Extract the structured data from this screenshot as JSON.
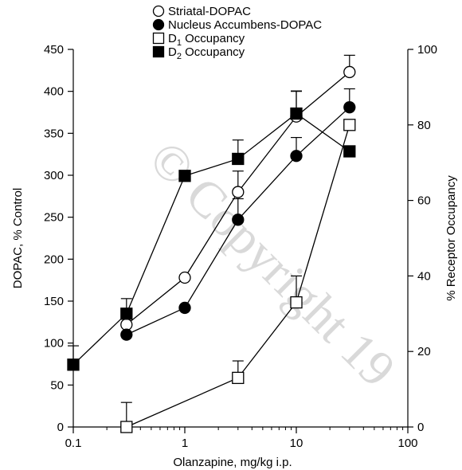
{
  "watermark": "© Copyright 19",
  "chart_data": {
    "type": "line",
    "xlabel": "Olanzapine, mg/kg i.p.",
    "ylabel_left": "DOPAC, % Control",
    "ylabel_right": "% Receptor Occupancy",
    "x_scale": "log",
    "xlim": [
      0.1,
      100
    ],
    "ylim_left": [
      0,
      450
    ],
    "ylim_right": [
      0,
      100
    ],
    "x_ticks": [
      0.1,
      1,
      10,
      100
    ],
    "x_tick_labels": [
      "0.1",
      "1",
      "10",
      "100"
    ],
    "y_left_ticks": [
      0,
      50,
      100,
      150,
      200,
      250,
      300,
      350,
      400,
      450
    ],
    "y_left_tick_labels": [
      "0",
      "50",
      "100",
      "150",
      "200",
      "250",
      "300",
      "350",
      "400",
      "450"
    ],
    "y_right_ticks": [
      0,
      20,
      40,
      60,
      80,
      100
    ],
    "y_right_tick_labels": [
      "0",
      "20",
      "40",
      "60",
      "80",
      "100"
    ],
    "grid": false,
    "legend_position": "top-center",
    "series": [
      {
        "id": "striatal",
        "name": "Striatal-DOPAC",
        "axis": "left",
        "marker": "circle",
        "fill": "#ffffff",
        "x": [
          0.3,
          1,
          3,
          10,
          30
        ],
        "y": [
          122,
          178,
          280,
          370,
          423
        ],
        "err": [
          null,
          null,
          25,
          30,
          20
        ]
      },
      {
        "id": "accumbens",
        "name": "Nucleus Accumbens-DOPAC",
        "axis": "left",
        "marker": "circle",
        "fill": "#000000",
        "x": [
          0.3,
          1,
          3,
          10,
          30
        ],
        "y": [
          110,
          142,
          247,
          323,
          381
        ],
        "err": [
          null,
          null,
          25,
          22,
          22
        ]
      },
      {
        "id": "d1",
        "name_main": "D",
        "name_sub": "1",
        "name_suffix": " Occupancy",
        "axis": "right",
        "marker": "square",
        "fill": "#ffffff",
        "x": [
          0.3,
          3,
          10,
          30
        ],
        "y": [
          0,
          13,
          33,
          80
        ],
        "err": [
          6.5,
          4.5,
          7,
          null
        ]
      },
      {
        "id": "d2",
        "name_main": "D",
        "name_sub": "2",
        "name_suffix": " Occupancy",
        "axis": "right",
        "marker": "square",
        "fill": "#000000",
        "x": [
          0.1,
          0.3,
          1,
          3,
          10,
          30
        ],
        "y": [
          16.5,
          30,
          66.5,
          71,
          83,
          73
        ],
        "err": [
          5,
          4,
          null,
          5,
          6,
          null
        ]
      }
    ]
  }
}
